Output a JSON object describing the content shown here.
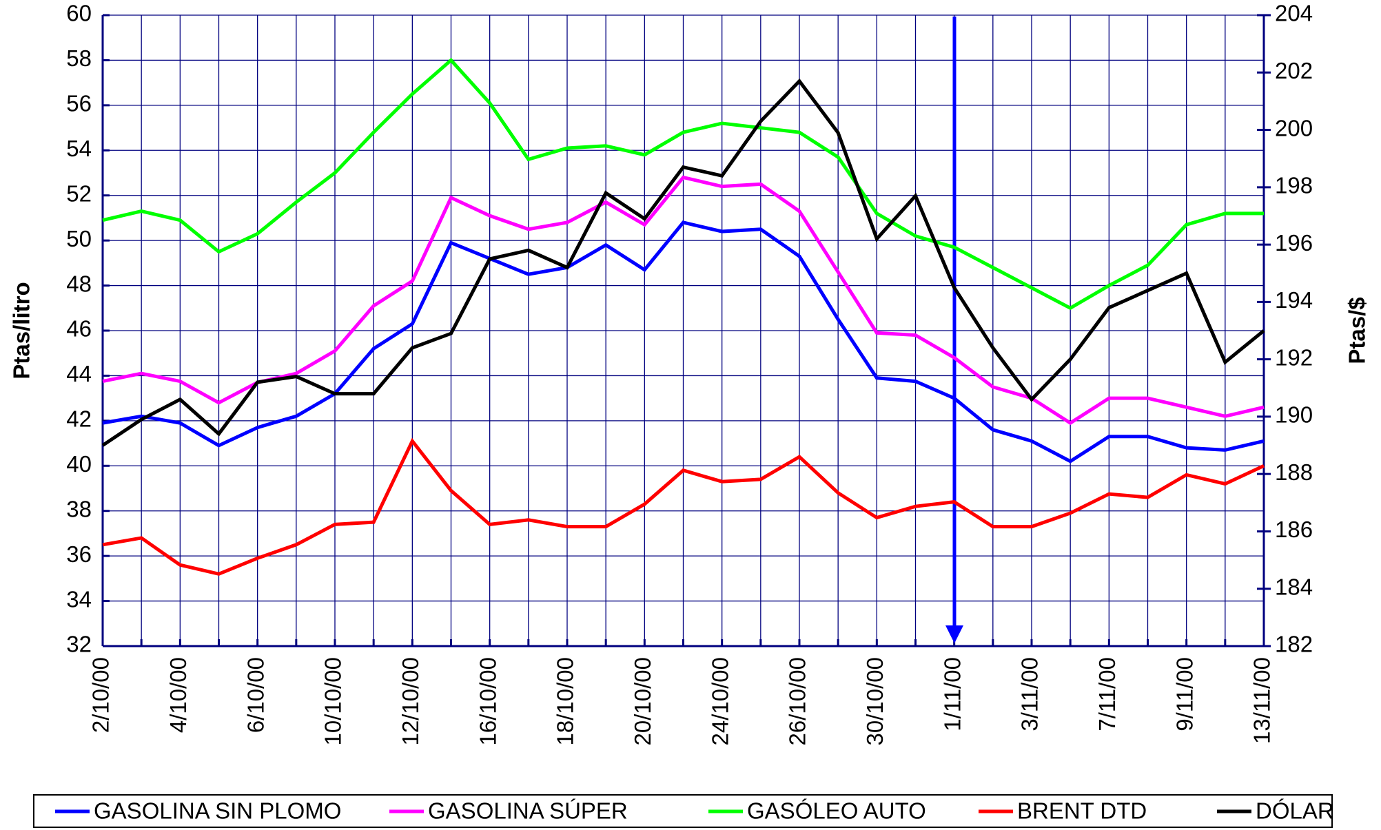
{
  "chart_data": {
    "type": "line",
    "y_label": "Ptas/litro",
    "y2_label": "Ptas/$",
    "categories": [
      "2/10/00",
      null,
      "4/10/00",
      null,
      "6/10/00",
      null,
      "10/10/00",
      null,
      "12/10/00",
      null,
      "16/10/00",
      null,
      "18/10/00",
      null,
      "20/10/00",
      null,
      "24/10/00",
      null,
      "26/10/00",
      null,
      "30/10/00",
      null,
      "1/11/00",
      null,
      "3/11/00",
      null,
      "7/11/00",
      null,
      "9/11/00",
      null,
      "13/11/00"
    ],
    "series": [
      {
        "name": "GASOLINA SIN PLOMO",
        "color": "#0000ff",
        "values": [
          41.9,
          42.2,
          41.9,
          40.9,
          41.7,
          42.2,
          43.2,
          45.2,
          46.3,
          49.9,
          49.2,
          48.5,
          48.8,
          49.8,
          48.7,
          50.8,
          50.4,
          50.5,
          49.3,
          46.5,
          43.9,
          43.75,
          43.0,
          41.6,
          41.1,
          40.2,
          41.3,
          41.3,
          40.8,
          40.7,
          41.1
        ]
      },
      {
        "name": "GASOLINA SÚPER",
        "color": "#ff00ff",
        "values": [
          43.75,
          44.1,
          43.75,
          42.8,
          43.7,
          44.1,
          45.1,
          47.1,
          48.2,
          51.9,
          51.1,
          50.5,
          50.8,
          51.7,
          50.7,
          52.8,
          52.4,
          52.5,
          51.3,
          48.6,
          45.9,
          45.8,
          44.8,
          43.5,
          43.0,
          41.9,
          43.0,
          43.0,
          42.6,
          42.2,
          42.6
        ]
      },
      {
        "name": "GASÓLEO AUTO",
        "color": "#00ff00",
        "values": [
          50.9,
          51.3,
          50.9,
          49.5,
          50.3,
          51.7,
          53.0,
          54.8,
          56.5,
          58.0,
          56.1,
          53.6,
          54.1,
          54.2,
          53.8,
          54.8,
          55.2,
          55.0,
          54.8,
          53.7,
          51.2,
          50.2,
          49.7,
          48.8,
          47.9,
          47.0,
          48.0,
          48.9,
          50.7,
          51.2,
          51.2
        ]
      },
      {
        "name": "BRENT DTD",
        "color": "#ff0000",
        "values": [
          36.5,
          36.8,
          35.6,
          35.2,
          35.9,
          36.5,
          37.4,
          37.5,
          41.1,
          38.9,
          37.4,
          37.6,
          37.3,
          37.3,
          38.3,
          39.8,
          39.3,
          39.4,
          40.4,
          38.8,
          37.7,
          38.2,
          38.4,
          37.3,
          37.3,
          37.9,
          38.75,
          38.6,
          39.6,
          39.2,
          40.0
        ]
      },
      {
        "name": "DÓLAR",
        "color": "#000000",
        "axis": "y2",
        "values": [
          189.0,
          189.9,
          190.6,
          189.4,
          191.2,
          191.4,
          190.8,
          190.8,
          192.4,
          192.9,
          195.5,
          195.8,
          195.2,
          197.8,
          196.9,
          198.7,
          198.4,
          200.3,
          201.7,
          199.9,
          196.2,
          197.7,
          194.5,
          192.4,
          190.6,
          192.0,
          193.8,
          194.4,
          195.0,
          191.9,
          193.0
        ]
      }
    ],
    "ylim": [
      32,
      60
    ],
    "yticks": [
      32,
      34,
      36,
      38,
      40,
      42,
      44,
      46,
      48,
      50,
      52,
      54,
      56,
      58,
      60
    ],
    "y2lim": [
      182,
      204
    ],
    "y2ticks": [
      182,
      184,
      186,
      188,
      190,
      192,
      194,
      196,
      198,
      200,
      202,
      204
    ],
    "grid": true,
    "legend": "bottom"
  }
}
